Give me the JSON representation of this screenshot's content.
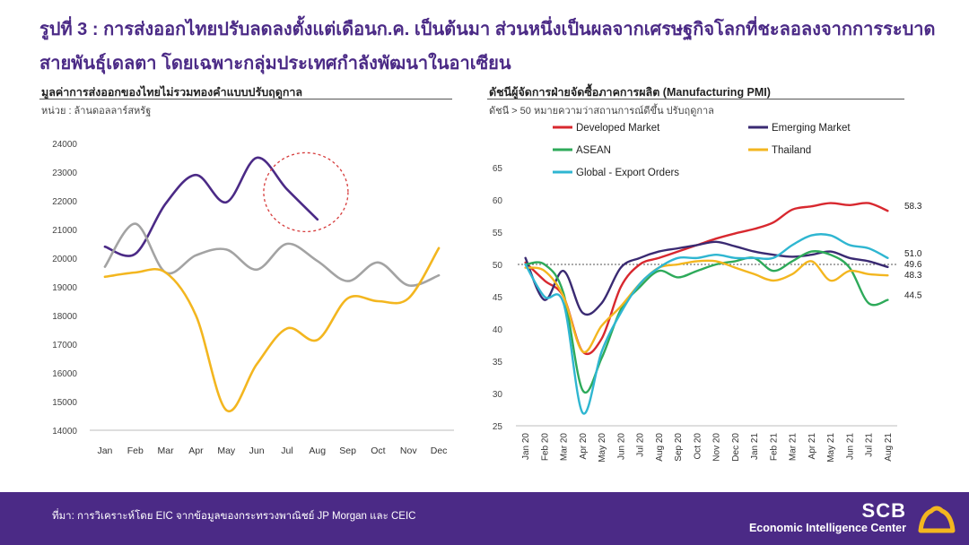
{
  "page": {
    "title": "รูปที่ 3 : การส่งออกไทยปรับลดลงตั้งแต่เดือนก.ค. เป็นต้นมา ส่วนหนึ่งเป็นผลจากเศรษฐกิจโลกที่ชะลอลงจากการระบาดสายพันธุ์เดลตา โดยเฉพาะกลุ่มประเทศกำลังพัฒนาในอาเซียน",
    "source": "ที่มา: การวิเคราะห์โดย EIC จากข้อมูลของกระทรวงพาณิชย์ JP Morgan และ CEIC",
    "logo_main": "SCB",
    "logo_sub": "Economic Intelligence Center",
    "colors": {
      "brand": "#4b2a86",
      "logo_accent": "#f3b61f"
    }
  },
  "chart_data": [
    {
      "type": "line",
      "title": "มูลค่าการส่งออกของไทยไม่รวมทองคำแบบปรับฤดูกาล",
      "unit_label": "หน่วย : ล้านดอลลาร์สหรัฐ",
      "categories": [
        "Jan",
        "Feb",
        "Mar",
        "Apr",
        "May",
        "Jun",
        "Jul",
        "Aug",
        "Sep",
        "Oct",
        "Nov",
        "Dec"
      ],
      "ylim": [
        14000,
        24000
      ],
      "yticks": [
        14000,
        15000,
        16000,
        17000,
        18000,
        19000,
        20000,
        21000,
        22000,
        23000,
        24000
      ],
      "grid": false,
      "series": [
        {
          "color": "#4b2a86",
          "values": [
            20400,
            20150,
            21900,
            22900,
            21950,
            23500,
            22400,
            21350,
            null,
            null,
            null,
            null
          ]
        },
        {
          "color": "#a3a3a3",
          "values": [
            19700,
            21200,
            19500,
            20100,
            20300,
            19600,
            20500,
            19900,
            19200,
            19850,
            19050,
            19400
          ]
        },
        {
          "color": "#f3b61f",
          "values": [
            19350,
            19500,
            19500,
            18000,
            14700,
            16300,
            17550,
            17150,
            18600,
            18500,
            18600,
            20350
          ]
        }
      ],
      "annotation": {
        "type": "dashed-circle",
        "color": "#d63b3b",
        "category_center": "Jul",
        "y_center": 22300
      }
    },
    {
      "type": "line",
      "title": "ดัชนีผู้จัดการฝ่ายจัดซื้อภาคการผลิต (Manufacturing PMI)",
      "unit_label": "ดัชนี > 50 หมายความว่าสถานการณ์ดีขึ้น ปรับฤดูกาล",
      "categories": [
        "Jan 20",
        "Feb 20",
        "Mar 20",
        "Apr 20",
        "May 20",
        "Jun 20",
        "Jul 20",
        "Aug 20",
        "Sep 20",
        "Oct 20",
        "Nov 20",
        "Dec 20",
        "Jan 21",
        "Feb 21",
        "Mar 21",
        "Apr 21",
        "May 21",
        "Jun 21",
        "Jul 21",
        "Aug 21"
      ],
      "ylim": [
        25,
        65
      ],
      "yticks": [
        25,
        30,
        35,
        40,
        45,
        50,
        55,
        60,
        65
      ],
      "grid": false,
      "reference_line": 50,
      "legend_position": "top",
      "series": [
        {
          "name": "Developed Market",
          "color": "#d8282f",
          "values": [
            50.3,
            47.5,
            45.0,
            36.5,
            38.5,
            46.5,
            50.0,
            51.0,
            52.0,
            53.0,
            54.0,
            54.8,
            55.5,
            56.5,
            58.5,
            59.0,
            59.5,
            59.2,
            59.5,
            58.3
          ],
          "end_label": "58.3"
        },
        {
          "name": "Emerging Market",
          "color": "#3a2a72",
          "values": [
            51.0,
            44.5,
            49.0,
            42.5,
            44.0,
            49.5,
            51.0,
            52.0,
            52.5,
            53.0,
            53.5,
            52.8,
            52.0,
            51.5,
            51.2,
            51.5,
            52.0,
            51.0,
            50.5,
            49.6
          ],
          "end_label": "49.6"
        },
        {
          "name": "ASEAN",
          "color": "#2eaa5a",
          "values": [
            50.0,
            50.0,
            45.5,
            30.5,
            35.5,
            43.0,
            46.5,
            49.0,
            48.0,
            49.0,
            50.0,
            50.5,
            51.0,
            49.0,
            50.5,
            52.0,
            51.5,
            49.5,
            44.0,
            44.5
          ],
          "end_label": "44.5"
        },
        {
          "name": "Thailand",
          "color": "#f3b61f",
          "values": [
            49.5,
            49.0,
            45.0,
            36.5,
            40.5,
            43.5,
            47.0,
            49.5,
            50.0,
            50.5,
            50.5,
            49.5,
            48.5,
            47.5,
            48.5,
            50.5,
            47.5,
            49.0,
            48.5,
            48.3
          ],
          "end_label": "48.3"
        },
        {
          "name": "Global - Export Orders",
          "color": "#2fb6d1",
          "values": [
            50.0,
            45.0,
            44.0,
            27.0,
            36.5,
            42.5,
            47.0,
            49.5,
            51.0,
            51.0,
            51.5,
            51.0,
            51.0,
            51.0,
            53.0,
            54.5,
            54.5,
            53.0,
            52.5,
            51.0
          ],
          "end_label": "51.0"
        }
      ]
    }
  ]
}
